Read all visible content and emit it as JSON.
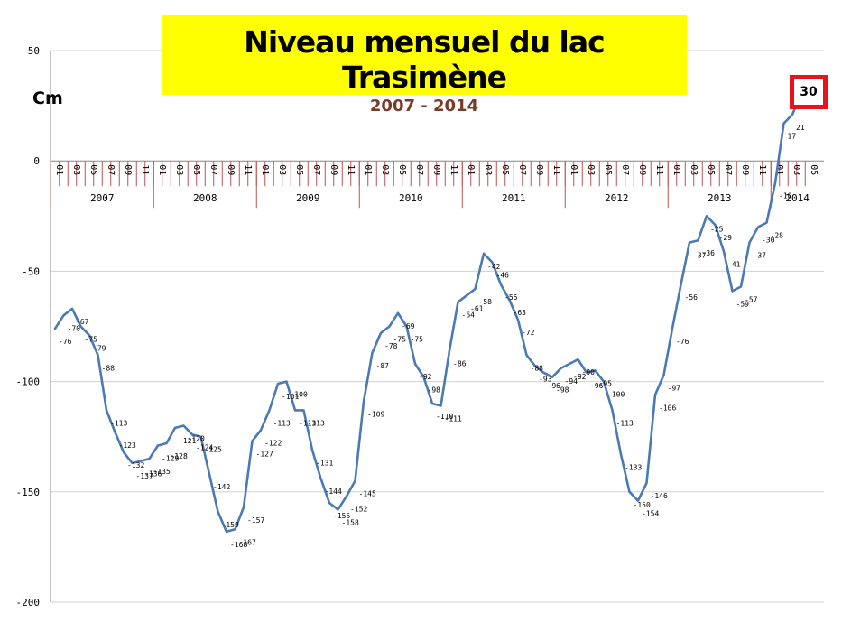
{
  "title": "Niveau mensuel du lac Trasimène",
  "subtitle": "2007 - 2014",
  "unit_label": "Cm",
  "highlight": {
    "value": "30",
    "color": "#e8141c"
  },
  "colors": {
    "line": "#4a7ab5",
    "grid": "#d0d0d0",
    "title_bg": "#ffff00",
    "month_axis": "#c0504d",
    "subtitle": "#7b3a24"
  },
  "chart_data": {
    "type": "line",
    "title": "Niveau mensuel du lac Trasimène",
    "subtitle": "2007 - 2014",
    "ylabel": "Cm",
    "ylim": [
      -200,
      50
    ],
    "yticks": [
      50,
      0,
      -50,
      -100,
      -150,
      -200
    ],
    "grid": true,
    "month_labels": [
      "01",
      "03",
      "05",
      "07",
      "09",
      "11"
    ],
    "month_labels_final_year": [
      "01",
      "03",
      "05"
    ],
    "years": [
      "2007",
      "2008",
      "2009",
      "2010",
      "2011",
      "2012",
      "2013",
      "2014"
    ],
    "series": [
      {
        "values": [
          -76,
          -70,
          -67,
          -75,
          -79,
          -88,
          -113,
          -123,
          -132,
          -137,
          -136,
          -135,
          -129,
          -128,
          -121,
          -120,
          -124,
          -125,
          -142,
          -159,
          -168,
          -167,
          -157,
          -127,
          -122,
          -113,
          -101,
          -100,
          -113,
          -113,
          -131,
          -144,
          -155,
          -158,
          -152,
          -145,
          -109,
          -87,
          -78,
          -75,
          -69,
          -75,
          -92,
          -98,
          -110,
          -111,
          -86,
          -64,
          -61,
          -58,
          -42,
          -46,
          -56,
          -63,
          -72,
          -88,
          -93,
          -96,
          -98,
          -94,
          -92,
          -90,
          -96,
          -95,
          -100,
          -113,
          -133,
          -150,
          -154,
          -146,
          -106,
          -97,
          -76,
          -56,
          -37,
          -36,
          -25,
          -29,
          -41,
          -59,
          -57,
          -37,
          -30,
          -28,
          -10,
          17,
          21,
          30
        ],
        "labels": [
          "-76",
          "-70",
          "-67",
          "-75",
          "-79",
          "-88",
          "-113",
          "-123",
          "-132",
          "-137",
          "-136",
          "-135",
          "-129",
          "-128",
          "-121",
          "-120",
          "-124",
          "-125",
          "-142",
          "-159",
          "-168",
          "-167",
          "-157",
          "-127",
          "-122",
          "-113",
          "-101",
          "-100",
          "-113",
          "-113",
          "-131",
          "-144",
          "-155",
          "-158",
          "-152",
          "-145",
          "-109",
          "-87",
          "-78",
          "-75",
          "-69",
          "-75",
          "-92",
          "-98",
          "-110",
          "-111",
          "-86",
          "-64",
          "-61",
          "-58",
          "-42",
          "-46",
          "-56",
          "-63",
          "-72",
          "-88",
          "-93",
          "-96",
          "-98",
          "-94",
          "-92",
          "-90",
          "-96",
          "-95",
          "-100",
          "-113",
          "-133",
          "-150",
          "-154",
          "-146",
          "-106",
          "-97",
          "-76",
          "-56",
          "-37",
          "-36",
          "-25",
          "-29",
          "-41",
          "-59",
          "-57",
          "-37",
          "-30",
          "-28",
          "-10",
          "17",
          "21",
          ""
        ]
      }
    ]
  }
}
